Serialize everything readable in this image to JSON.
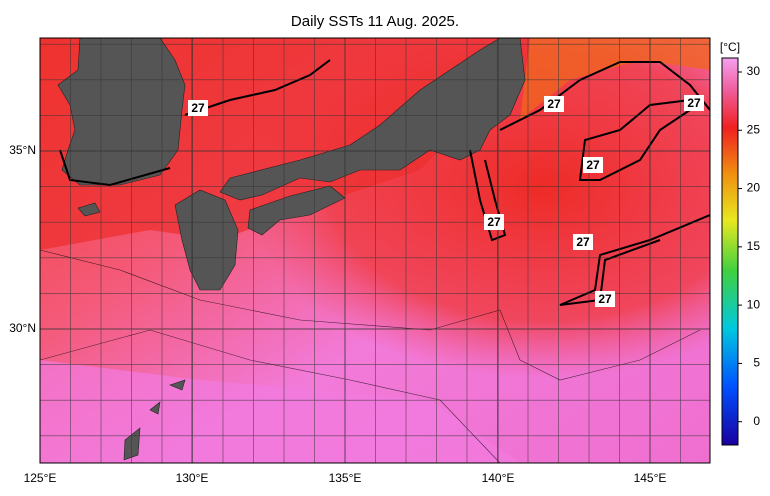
{
  "title": "Daily SSTs 11 Aug. 2025.",
  "x_axis": {
    "labels": [
      "125°E",
      "130°E",
      "135°E",
      "140°E",
      "145°E"
    ]
  },
  "y_axis": {
    "labels": [
      "35°N",
      "30°N"
    ]
  },
  "colorbar": {
    "unit": "[°C]",
    "ticks": [
      30,
      25,
      20,
      15,
      10,
      5,
      0
    ]
  },
  "contour_labels": [
    "27",
    "27",
    "27",
    "27",
    "27",
    "27",
    "27"
  ]
}
